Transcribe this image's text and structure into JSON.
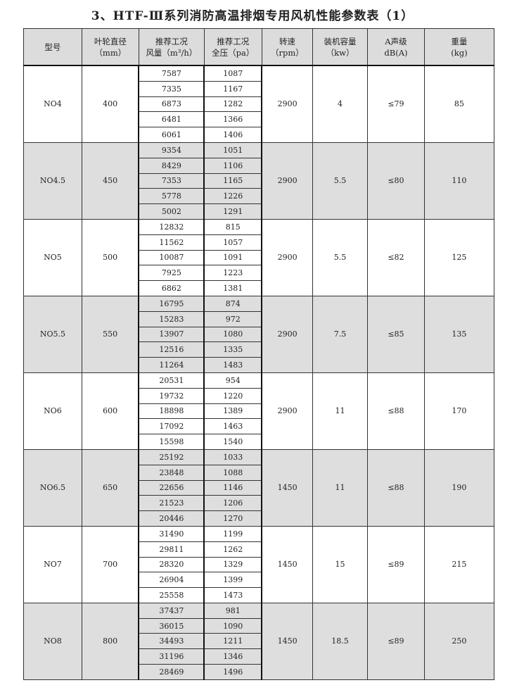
{
  "title": "3、HTF-Ⅲ系列消防高温排烟专用风机性能参数表（1）",
  "headers": [
    {
      "line1": "型号",
      "line2": ""
    },
    {
      "line1": "叶轮直径",
      "line2": "（mm）"
    },
    {
      "line1": "推荐工况",
      "line2": "风量（m³/h）"
    },
    {
      "line1": "推荐工况",
      "line2": "全压（pa）"
    },
    {
      "line1": "转速",
      "line2": "（rpm）"
    },
    {
      "line1": "装机容量",
      "line2": "（kw）"
    },
    {
      "line1": "A声级",
      "line2": "dB(A)"
    },
    {
      "line1": "重量",
      "line2": "(kg)"
    }
  ],
  "rows": [
    {
      "model": "NO4",
      "diameter": "400",
      "flow": [
        "7587",
        "7335",
        "6873",
        "6481",
        "6061"
      ],
      "pressure": [
        "1087",
        "1167",
        "1282",
        "1366",
        "1406"
      ],
      "rpm": "2900",
      "power": "4",
      "noise": "≤79",
      "weight": "85"
    },
    {
      "model": "NO4.5",
      "diameter": "450",
      "flow": [
        "9354",
        "8429",
        "7353",
        "5778",
        "5002"
      ],
      "pressure": [
        "1051",
        "1106",
        "1165",
        "1226",
        "1291"
      ],
      "rpm": "2900",
      "power": "5.5",
      "noise": "≤80",
      "weight": "110"
    },
    {
      "model": "NO5",
      "diameter": "500",
      "flow": [
        "12832",
        "11562",
        "10087",
        "7925",
        "6862"
      ],
      "pressure": [
        "815",
        "1057",
        "1091",
        "1223",
        "1381"
      ],
      "rpm": "2900",
      "power": "5.5",
      "noise": "≤82",
      "weight": "125"
    },
    {
      "model": "NO5.5",
      "diameter": "550",
      "flow": [
        "16795",
        "15283",
        "13907",
        "12516",
        "11264"
      ],
      "pressure": [
        "874",
        "972",
        "1080",
        "1335",
        "1483"
      ],
      "rpm": "2900",
      "power": "7.5",
      "noise": "≤85",
      "weight": "135"
    },
    {
      "model": "NO6",
      "diameter": "600",
      "flow": [
        "20531",
        "19732",
        "18898",
        "17092",
        "15598"
      ],
      "pressure": [
        "954",
        "1220",
        "1389",
        "1463",
        "1540"
      ],
      "rpm": "2900",
      "power": "11",
      "noise": "≤88",
      "weight": "170"
    },
    {
      "model": "NO6.5",
      "diameter": "650",
      "flow": [
        "25192",
        "23848",
        "22656",
        "21523",
        "20446"
      ],
      "pressure": [
        "1033",
        "1088",
        "1146",
        "1206",
        "1270"
      ],
      "rpm": "1450",
      "power": "11",
      "noise": "≤88",
      "weight": "190"
    },
    {
      "model": "NO7",
      "diameter": "700",
      "flow": [
        "31490",
        "29811",
        "28320",
        "26904",
        "25558"
      ],
      "pressure": [
        "1199",
        "1262",
        "1329",
        "1399",
        "1473"
      ],
      "rpm": "1450",
      "power": "15",
      "noise": "≤89",
      "weight": "215"
    },
    {
      "model": "NO8",
      "diameter": "800",
      "flow": [
        "37437",
        "36015",
        "34493",
        "31196",
        "28469"
      ],
      "pressure": [
        "981",
        "1090",
        "1211",
        "1346",
        "1496"
      ],
      "rpm": "1450",
      "power": "18.5",
      "noise": "≤89",
      "weight": "250"
    }
  ],
  "colors": {
    "header_bg": "#dcdcdc",
    "alt_group_bg": "#dedede",
    "border": "#333333"
  }
}
